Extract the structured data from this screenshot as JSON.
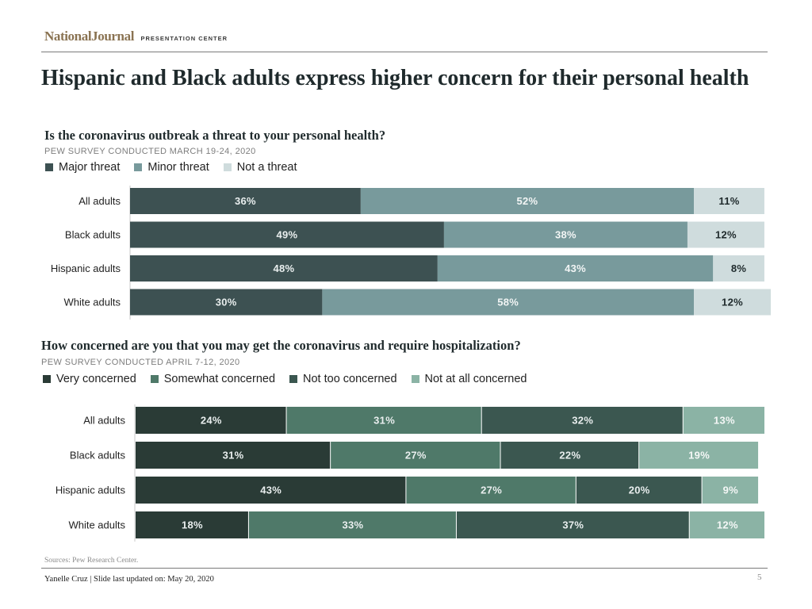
{
  "header": {
    "logo_main": "NationalJournal",
    "logo_sub": "PRESENTATION CENTER"
  },
  "title": "Hispanic and Black adults express higher concern for their personal health",
  "chart_data": [
    {
      "type": "bar",
      "orientation": "horizontal",
      "stacked": true,
      "title": "Is the coronavirus outbreak a threat to your personal health?",
      "subtitle": "PEW SURVEY CONDUCTED MARCH 19-24, 2020",
      "categories": [
        "All adults",
        "Black adults",
        "Hispanic adults",
        "White adults"
      ],
      "series": [
        {
          "name": "Major threat",
          "color": "#3d5152",
          "label_color": "#e9eeee",
          "values": [
            36,
            49,
            48,
            30
          ]
        },
        {
          "name": "Minor threat",
          "color": "#789a9c",
          "label_color": "#f2f5f5",
          "values": [
            52,
            38,
            43,
            58
          ]
        },
        {
          "name": "Not a threat",
          "color": "#cfdcdd",
          "label_color": "#1f2a2c",
          "values": [
            11,
            12,
            8,
            12
          ]
        }
      ],
      "xlim": [
        0,
        100
      ],
      "value_suffix": "%",
      "legend_position": "top-left"
    },
    {
      "type": "bar",
      "orientation": "horizontal",
      "stacked": true,
      "title": "How concerned are you that you may get the coronavirus and require hospitalization?",
      "subtitle": "PEW SURVEY CONDUCTED APRIL 7-12, 2020",
      "categories": [
        "All adults",
        "Black adults",
        "Hispanic adults",
        "White adults"
      ],
      "series": [
        {
          "name": "Very concerned",
          "color": "#2a3b36",
          "label_color": "#e9eeee",
          "values": [
            24,
            31,
            43,
            18
          ]
        },
        {
          "name": "Somewhat concerned",
          "color": "#4f7969",
          "label_color": "#e9eeee",
          "values": [
            31,
            27,
            27,
            33
          ]
        },
        {
          "name": "Not too concerned",
          "color": "#3b5750",
          "label_color": "#e9eeee",
          "values": [
            32,
            22,
            20,
            37
          ]
        },
        {
          "name": "Not at all concerned",
          "color": "#8bb3a5",
          "label_color": "#f4f7f6",
          "values": [
            13,
            19,
            9,
            12
          ]
        }
      ],
      "xlim": [
        0,
        100
      ],
      "value_suffix": "%",
      "legend_position": "top-left"
    }
  ],
  "footer": {
    "sources": "Sources: Pew Research Center.",
    "credit": "Yanelle Cruz | Slide last updated on: May 20, 2020",
    "page_number": "5"
  }
}
